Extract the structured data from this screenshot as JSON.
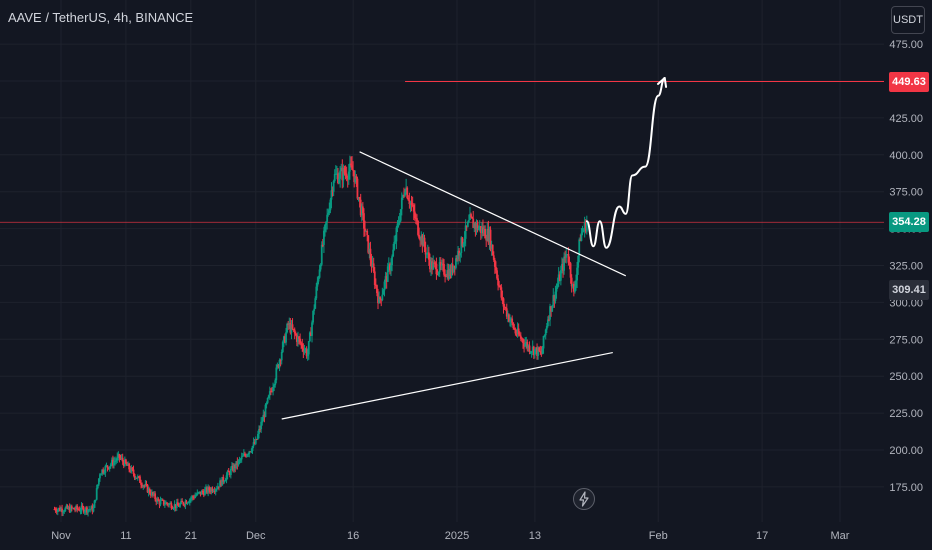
{
  "header": {
    "symbol_title": "AAVE / TetherUS, 4h, BINANCE",
    "currency_button": "USDT"
  },
  "price_tags": {
    "target": "449.63",
    "last": "354.28",
    "open": "309.41"
  },
  "colors": {
    "background": "#131722",
    "bull_candle": "#089981",
    "bear_candle": "#f23645",
    "target_line": "#f23645",
    "trendline": "#ffffff"
  },
  "icons": {
    "replay": "lightning-bolt-icon"
  },
  "chart_data": {
    "type": "candlestick",
    "symbol": "AAVE / TetherUS",
    "interval": "4h",
    "exchange": "BINANCE",
    "ylim": [
      150,
      490
    ],
    "yticks": [
      "475.00",
      "450.00",
      "425.00",
      "400.00",
      "375.00",
      "350.00",
      "325.00",
      "300.00",
      "275.00",
      "250.00",
      "225.00",
      "200.00",
      "175.00"
    ],
    "xticks": [
      {
        "label": "Nov",
        "date": "2024-11-01"
      },
      {
        "label": "11",
        "date": "2024-11-11"
      },
      {
        "label": "21",
        "date": "2024-11-21"
      },
      {
        "label": "Dec",
        "date": "2024-12-01"
      },
      {
        "label": "16",
        "date": "2024-12-16"
      },
      {
        "label": "2025",
        "date": "2025-01-01"
      },
      {
        "label": "13",
        "date": "2025-01-13"
      },
      {
        "label": "Feb",
        "date": "2025-02-01"
      },
      {
        "label": "17",
        "date": "2025-02-17"
      },
      {
        "label": "Mar",
        "date": "2025-03-01"
      }
    ],
    "price_path": [
      {
        "date": "2024-10-31",
        "price": 160
      },
      {
        "date": "2024-11-06",
        "price": 160
      },
      {
        "date": "2024-11-07",
        "price": 185
      },
      {
        "date": "2024-11-10",
        "price": 195
      },
      {
        "date": "2024-11-13",
        "price": 180
      },
      {
        "date": "2024-11-16",
        "price": 165
      },
      {
        "date": "2024-11-19",
        "price": 162
      },
      {
        "date": "2024-11-22",
        "price": 170
      },
      {
        "date": "2024-11-25",
        "price": 175
      },
      {
        "date": "2024-11-28",
        "price": 190
      },
      {
        "date": "2024-12-01",
        "price": 205
      },
      {
        "date": "2024-12-04",
        "price": 250
      },
      {
        "date": "2024-12-06",
        "price": 285
      },
      {
        "date": "2024-12-09",
        "price": 265
      },
      {
        "date": "2024-12-11",
        "price": 330
      },
      {
        "date": "2024-12-13",
        "price": 385
      },
      {
        "date": "2024-12-16",
        "price": 390
      },
      {
        "date": "2024-12-18",
        "price": 345
      },
      {
        "date": "2024-12-20",
        "price": 300
      },
      {
        "date": "2024-12-22",
        "price": 330
      },
      {
        "date": "2024-12-24",
        "price": 380
      },
      {
        "date": "2024-12-26",
        "price": 350
      },
      {
        "date": "2024-12-28",
        "price": 325
      },
      {
        "date": "2024-12-31",
        "price": 320
      },
      {
        "date": "2025-01-03",
        "price": 355
      },
      {
        "date": "2025-01-06",
        "price": 345
      },
      {
        "date": "2025-01-08",
        "price": 300
      },
      {
        "date": "2025-01-10",
        "price": 280
      },
      {
        "date": "2025-01-12",
        "price": 270
      },
      {
        "date": "2025-01-14",
        "price": 265
      },
      {
        "date": "2025-01-15",
        "price": 290
      },
      {
        "date": "2025-01-17",
        "price": 320
      },
      {
        "date": "2025-01-18",
        "price": 335
      },
      {
        "date": "2025-01-19",
        "price": 305
      },
      {
        "date": "2025-01-20",
        "price": 345
      },
      {
        "date": "2025-01-21",
        "price": 354.28
      }
    ],
    "drawings": {
      "target_level": 449.63,
      "last_price_level": 354.28,
      "upper_trendline": [
        {
          "date": "2024-12-17",
          "price": 402
        },
        {
          "date": "2025-01-27",
          "price": 318
        }
      ],
      "lower_trendline": [
        {
          "date": "2024-12-05",
          "price": 221
        },
        {
          "date": "2025-01-25",
          "price": 266
        }
      ],
      "projection_path": [
        {
          "date": "2025-01-21",
          "price": 355
        },
        {
          "date": "2025-01-22",
          "price": 338
        },
        {
          "date": "2025-01-23",
          "price": 355
        },
        {
          "date": "2025-01-24",
          "price": 337
        },
        {
          "date": "2025-01-26",
          "price": 365
        },
        {
          "date": "2025-01-27",
          "price": 360
        },
        {
          "date": "2025-01-28",
          "price": 386
        },
        {
          "date": "2025-01-30",
          "price": 392
        },
        {
          "date": "2025-02-01",
          "price": 440
        },
        {
          "date": "2025-02-02",
          "price": 452
        }
      ]
    }
  }
}
